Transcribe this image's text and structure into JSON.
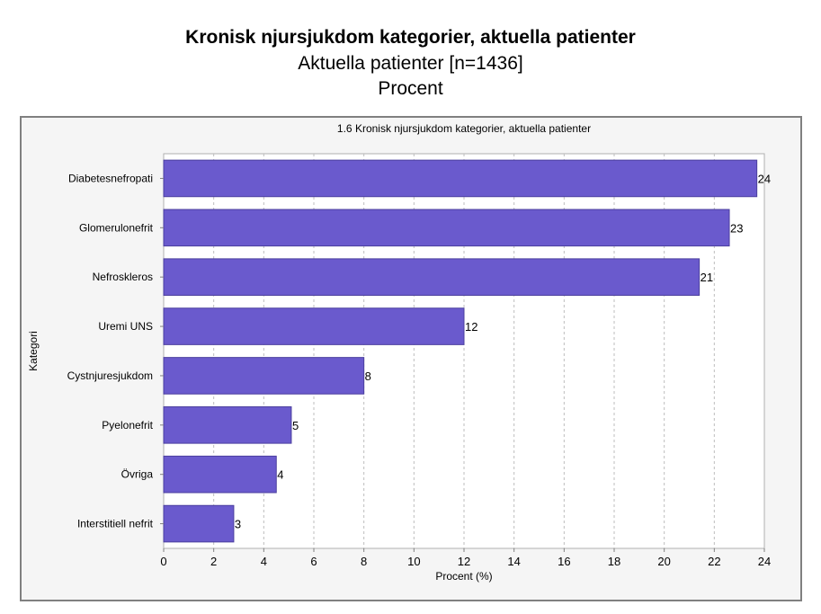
{
  "header": {
    "title": "Kronisk njursjukdom kategorier, aktuella patienter",
    "subtitle": "Aktuella patienter [n=1436]",
    "unit": "Procent"
  },
  "chart_data": {
    "type": "bar",
    "orientation": "horizontal",
    "title": "1.6 Kronisk njursjukdom kategorier, aktuella patienter",
    "xlabel": "Procent (%)",
    "ylabel": "Kategori",
    "categories": [
      "Diabetesnefropati",
      "Glomerulonefrit",
      "Nefroskleros",
      "Uremi UNS",
      "Cystnjuresjukdom",
      "Pyelonefrit",
      "Övriga",
      "Interstitiell nefrit"
    ],
    "values": [
      23.7,
      22.6,
      21.4,
      12.0,
      8.0,
      5.1,
      4.5,
      2.8
    ],
    "value_labels": [
      "24",
      "23",
      "21",
      "12",
      "8",
      "5",
      "4",
      "3"
    ],
    "xlim": [
      0,
      24
    ],
    "xticks": [
      0,
      2,
      4,
      6,
      8,
      10,
      12,
      14,
      16,
      18,
      20,
      22,
      24
    ],
    "grid": true,
    "bar_color": "#6a5acd",
    "bar_edge_color": "#4b3f9e"
  }
}
